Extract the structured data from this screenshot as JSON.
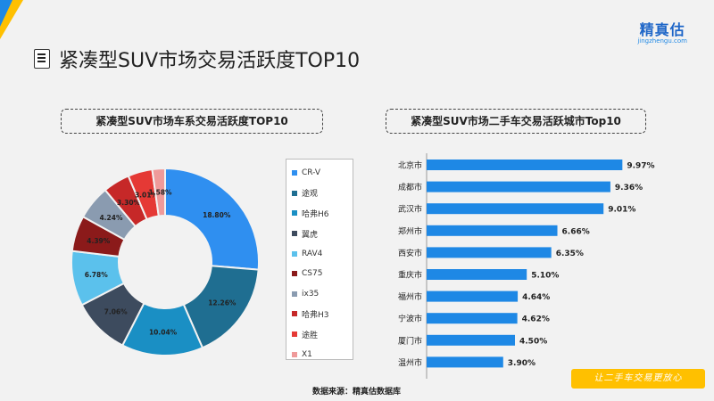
{
  "header": {
    "logo_text": "精真估",
    "logo_subtext": "jingzhengu.com",
    "page_title": "紧凑型SUV市场交易活跃度TOP10"
  },
  "chart_data": [
    {
      "type": "pie",
      "subtitle": "紧凑型SUV市场车系交易活跃度TOP10",
      "donut": true,
      "categories": [
        "CR-V",
        "途观",
        "哈弗H6",
        "翼虎",
        "RAV4",
        "CS75",
        "ix35",
        "哈弗H3",
        "途胜",
        "X1"
      ],
      "values": [
        18.8,
        12.26,
        10.04,
        7.06,
        6.78,
        4.39,
        4.24,
        3.3,
        3.01,
        1.58
      ],
      "value_labels": [
        "18.80%",
        "12.26%",
        "10.04%",
        "7.06%",
        "6.78%",
        "4.39%",
        "4.24%",
        "3.30%",
        "3.01%",
        "1.58%"
      ],
      "colors": [
        "#2f8ff0",
        "#1f6e91",
        "#1a8fc4",
        "#3d4b5e",
        "#5bc1ec",
        "#8b1a1a",
        "#8a9bb0",
        "#c62828",
        "#e53935",
        "#ef9a9a"
      ],
      "legend_position": "right"
    },
    {
      "type": "bar",
      "orientation": "horizontal",
      "subtitle": "紧凑型SUV市场二手车交易活跃城市Top10",
      "categories": [
        "北京市",
        "成都市",
        "武汉市",
        "郑州市",
        "西安市",
        "重庆市",
        "福州市",
        "宁波市",
        "厦门市",
        "温州市"
      ],
      "values": [
        9.97,
        9.36,
        9.01,
        6.66,
        6.35,
        5.1,
        4.64,
        4.62,
        4.5,
        3.9
      ],
      "value_labels": [
        "9.97%",
        "9.36%",
        "9.01%",
        "6.66%",
        "6.35%",
        "5.10%",
        "4.64%",
        "4.62%",
        "4.50%",
        "3.90%"
      ],
      "bar_color": "#1e88e5",
      "xlim": [
        0,
        10
      ]
    }
  ],
  "footer": {
    "source": "数据来源：精真估数据库",
    "slogan": "让二手车交易更放心"
  }
}
